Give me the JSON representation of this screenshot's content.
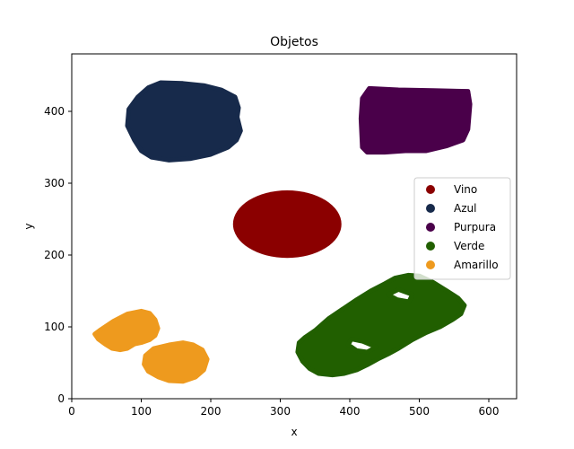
{
  "chart_data": {
    "type": "scatter",
    "title": "Objetos",
    "xlabel": "x",
    "ylabel": "y",
    "xlim": [
      0,
      640
    ],
    "ylim": [
      0,
      480
    ],
    "xticks": [
      0,
      100,
      200,
      300,
      400,
      500,
      600
    ],
    "yticks": [
      0,
      100,
      200,
      300,
      400
    ],
    "grid": false,
    "legend_position": "center-right",
    "series": [
      {
        "name": "Vino",
        "color": "#8b0000",
        "shape": "ellipse",
        "center": [
          310,
          243
        ],
        "radius": [
          78,
          47
        ]
      },
      {
        "name": "Azul",
        "color": "#172a4b",
        "shape": "polygon",
        "points": [
          [
            128,
            440
          ],
          [
            160,
            439
          ],
          [
            190,
            436
          ],
          [
            215,
            430
          ],
          [
            235,
            420
          ],
          [
            240,
            405
          ],
          [
            238,
            392
          ],
          [
            243,
            373
          ],
          [
            237,
            360
          ],
          [
            225,
            350
          ],
          [
            200,
            340
          ],
          [
            170,
            334
          ],
          [
            140,
            332
          ],
          [
            115,
            336
          ],
          [
            100,
            345
          ],
          [
            90,
            360
          ],
          [
            80,
            380
          ],
          [
            82,
            403
          ],
          [
            95,
            420
          ],
          [
            110,
            433
          ]
        ]
      },
      {
        "name": "Purpura",
        "color": "#4a004a",
        "shape": "polygon",
        "points": [
          [
            428,
            432
          ],
          [
            470,
            430
          ],
          [
            520,
            429
          ],
          [
            570,
            428
          ],
          [
            573,
            410
          ],
          [
            570,
            375
          ],
          [
            563,
            360
          ],
          [
            540,
            352
          ],
          [
            510,
            345
          ],
          [
            480,
            345
          ],
          [
            450,
            343
          ],
          [
            425,
            343
          ],
          [
            418,
            350
          ],
          [
            416,
            390
          ],
          [
            418,
            418
          ]
        ]
      },
      {
        "name": "Verde",
        "color": "#215f00",
        "shape": "polygon",
        "points": [
          [
            484,
            172
          ],
          [
            500,
            171
          ],
          [
            520,
            162
          ],
          [
            540,
            150
          ],
          [
            556,
            140
          ],
          [
            565,
            130
          ],
          [
            560,
            118
          ],
          [
            548,
            110
          ],
          [
            530,
            100
          ],
          [
            510,
            92
          ],
          [
            490,
            82
          ],
          [
            470,
            70
          ],
          [
            455,
            62
          ],
          [
            440,
            55
          ],
          [
            425,
            47
          ],
          [
            410,
            40
          ],
          [
            392,
            35
          ],
          [
            375,
            33
          ],
          [
            355,
            35
          ],
          [
            342,
            42
          ],
          [
            332,
            52
          ],
          [
            325,
            65
          ],
          [
            327,
            78
          ],
          [
            335,
            85
          ],
          [
            350,
            95
          ],
          [
            370,
            112
          ],
          [
            390,
            125
          ],
          [
            410,
            138
          ],
          [
            430,
            150
          ],
          [
            450,
            160
          ],
          [
            465,
            168
          ]
        ],
        "holes": [
          [
            [
              455,
              145
            ],
            [
              470,
              152
            ],
            [
              490,
              145
            ],
            [
              485,
              135
            ],
            [
              468,
              138
            ]
          ],
          [
            [
              402,
              83
            ],
            [
              418,
              80
            ],
            [
              438,
              72
            ],
            [
              425,
              65
            ],
            [
              410,
              67
            ],
            [
              398,
              75
            ]
          ]
        ]
      },
      {
        "name": "Amarillo",
        "color": "#ee9a1e",
        "shape": "multi-polygon",
        "parts": [
          [
            [
              40,
              95
            ],
            [
              60,
              108
            ],
            [
              80,
              118
            ],
            [
              100,
              122
            ],
            [
              112,
              119
            ],
            [
              120,
              110
            ],
            [
              124,
              98
            ],
            [
              120,
              88
            ],
            [
              112,
              82
            ],
            [
              100,
              78
            ],
            [
              90,
              76
            ],
            [
              80,
              70
            ],
            [
              70,
              68
            ],
            [
              58,
              70
            ],
            [
              48,
              76
            ],
            [
              38,
              83
            ],
            [
              33,
              90
            ]
          ],
          [
            [
              140,
              75
            ],
            [
              160,
              78
            ],
            [
              175,
              75
            ],
            [
              188,
              68
            ],
            [
              195,
              55
            ],
            [
              190,
              40
            ],
            [
              178,
              30
            ],
            [
              160,
              24
            ],
            [
              140,
              25
            ],
            [
              125,
              30
            ],
            [
              110,
              38
            ],
            [
              104,
              48
            ],
            [
              106,
              60
            ],
            [
              118,
              70
            ]
          ]
        ]
      }
    ]
  }
}
